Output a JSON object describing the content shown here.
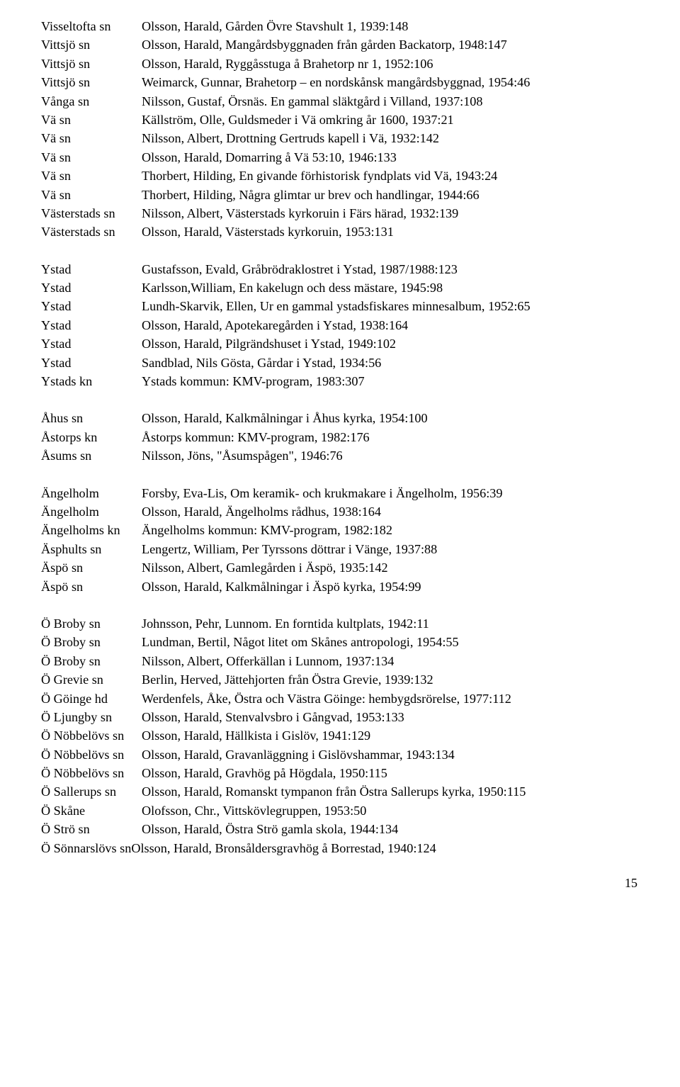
{
  "font_family": "Times New Roman",
  "background_color": "#ffffff",
  "text_color": "#000000",
  "font_size_pt": 14,
  "page_number": "15",
  "groups": [
    {
      "entries": [
        {
          "loc": "Visseltofta sn",
          "desc": "Olsson, Harald, Gården Övre Stavshult 1, 1939:148"
        },
        {
          "loc": "Vittsjö sn",
          "desc": "Olsson, Harald, Mangårdsbyggnaden från gården Backatorp, 1948:147"
        },
        {
          "loc": "Vittsjö sn",
          "desc": "Olsson, Harald, Ryggåsstuga å Brahetorp nr 1, 1952:106"
        },
        {
          "loc": "Vittsjö sn",
          "desc": "Weimarck, Gunnar, Brahetorp – en nordskånsk mangårdsbyggnad, 1954:46"
        },
        {
          "loc": "Vånga sn",
          "desc": "Nilsson, Gustaf, Örsnäs. En gammal släktgård i Villand, 1937:108"
        },
        {
          "loc": "Vä sn",
          "desc": "Källström, Olle, Guldsmeder i Vä omkring år 1600, 1937:21"
        },
        {
          "loc": "Vä sn",
          "desc": "Nilsson, Albert, Drottning Gertruds kapell i Vä, 1932:142"
        },
        {
          "loc": "Vä sn",
          "desc": "Olsson, Harald, Domarring å Vä 53:10, 1946:133"
        },
        {
          "loc": "Vä sn",
          "desc": "Thorbert, Hilding, En givande förhistorisk fyndplats vid Vä, 1943:24"
        },
        {
          "loc": "Vä sn",
          "desc": "Thorbert, Hilding, Några glimtar ur brev och handlingar, 1944:66"
        },
        {
          "loc": "Västerstads sn",
          "desc": "Nilsson, Albert, Västerstads kyrkoruin i Färs härad, 1932:139"
        },
        {
          "loc": "Västerstads sn",
          "desc": "Olsson, Harald, Västerstads kyrkoruin, 1953:131"
        }
      ]
    },
    {
      "entries": [
        {
          "loc": "Ystad",
          "desc": "Gustafsson, Evald, Gråbrödraklostret i Ystad, 1987/1988:123"
        },
        {
          "loc": "Ystad",
          "desc": "Karlsson,William, En kakelugn och dess mästare, 1945:98"
        },
        {
          "loc": "Ystad",
          "desc": "Lundh-Skarvik, Ellen, Ur en gammal ystadsfiskares minnesalbum, 1952:65"
        },
        {
          "loc": "Ystad",
          "desc": "Olsson, Harald, Apotekaregården i Ystad, 1938:164"
        },
        {
          "loc": "Ystad",
          "desc": "Olsson, Harald, Pilgrändshuset i Ystad, 1949:102"
        },
        {
          "loc": "Ystad",
          "desc": "Sandblad, Nils Gösta, Gårdar i Ystad, 1934:56"
        },
        {
          "loc": "Ystads kn",
          "desc": "Ystads kommun: KMV-program, 1983:307"
        }
      ]
    },
    {
      "entries": [
        {
          "loc": "Åhus sn",
          "desc": "Olsson, Harald, Kalkmålningar i Åhus kyrka, 1954:100"
        },
        {
          "loc": "Åstorps kn",
          "desc": "Åstorps kommun: KMV-program,  1982:176"
        },
        {
          "loc": "Åsums sn",
          "desc": "Nilsson, Jöns, \"Åsumspågen\", 1946:76"
        }
      ]
    },
    {
      "entries": [
        {
          "loc": "Ängelholm",
          "desc": "Forsby, Eva-Lis, Om keramik- och krukmakare i Ängelholm, 1956:39"
        },
        {
          "loc": "Ängelholm",
          "desc": "Olsson, Harald, Ängelholms rådhus, 1938:164"
        },
        {
          "loc": "Ängelholms kn",
          "desc": "Ängelholms kommun: KMV-program, 1982:182"
        },
        {
          "loc": "Äsphults sn",
          "desc": "Lengertz, William, Per Tyrssons döttrar i Vänge, 1937:88"
        },
        {
          "loc": "Äspö sn",
          "desc": "Nilsson, Albert, Gamlegården i Äspö, 1935:142"
        },
        {
          "loc": "Äspö sn",
          "desc": "Olsson, Harald, Kalkmålningar i Äspö kyrka, 1954:99"
        }
      ]
    },
    {
      "entries": [
        {
          "loc": "Ö Broby sn",
          "desc": "Johnsson, Pehr, Lunnom. En forntida kultplats, 1942:11"
        },
        {
          "loc": "Ö Broby sn",
          "desc": "Lundman, Bertil, Något litet om Skånes antropologi, 1954:55"
        },
        {
          "loc": "Ö Broby sn",
          "desc": "Nilsson, Albert, Offerkällan i Lunnom, 1937:134"
        },
        {
          "loc": "Ö Grevie sn",
          "desc": "Berlin, Herved, Jättehjorten från Östra Grevie, 1939:132"
        },
        {
          "loc": "Ö Göinge hd",
          "desc": "Werdenfels, Åke, Östra och Västra Göinge: hembygdsrörelse, 1977:112"
        },
        {
          "loc": "Ö Ljungby sn",
          "desc": "Olsson, Harald, Stenvalvsbro i Gångvad, 1953:133"
        },
        {
          "loc": "Ö Nöbbelövs sn",
          "desc": "Olsson, Harald, Hällkista i Gislöv, 1941:129"
        },
        {
          "loc": "Ö Nöbbelövs sn",
          "desc": "Olsson, Harald, Gravanläggning i Gislövshammar, 1943:134"
        },
        {
          "loc": "Ö Nöbbelövs sn",
          "desc": "Olsson, Harald, Gravhög på Högdala, 1950:115"
        },
        {
          "loc": "Ö Sallerups sn",
          "desc": "Olsson, Harald, Romanskt tympanon från Östra Sallerups kyrka, 1950:115"
        },
        {
          "loc": "Ö Skåne",
          "desc": "Olofsson, Chr., Vittskövlegruppen, 1953:50"
        },
        {
          "loc": "Ö Strö sn",
          "desc": "Olsson,  Harald, Östra Strö gamla skola, 1944:134"
        },
        {
          "loc": "Ö Sönnarslövs sn",
          "desc": "Olsson, Harald, Bronsåldersgravhög å Borrestad, 1940:124",
          "nosplit": true
        }
      ]
    }
  ]
}
